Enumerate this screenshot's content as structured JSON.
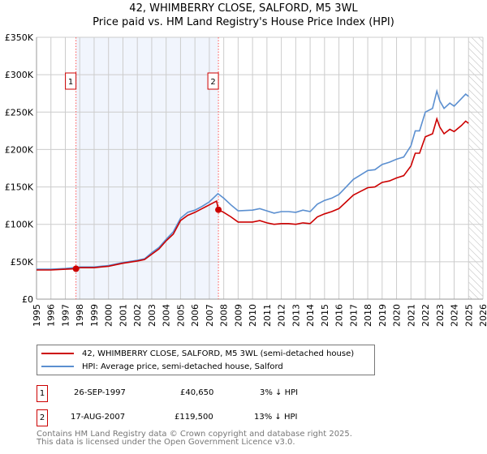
{
  "header": {
    "title": "42, WHIMBERRY CLOSE, SALFORD, M5 3WL",
    "subtitle": "Price paid vs. HM Land Registry's House Price Index (HPI)"
  },
  "chart_data": {
    "type": "line",
    "title": "42, WHIMBERRY CLOSE, SALFORD, M5 3WL",
    "subtitle": "Price paid vs. HM Land Registry's House Price Index (HPI)",
    "xlim": [
      1995,
      2026
    ],
    "ylim": [
      0,
      350000
    ],
    "x_ticks": [
      "1995",
      "1996",
      "1997",
      "1998",
      "1999",
      "2000",
      "2001",
      "2002",
      "2003",
      "2004",
      "2005",
      "2006",
      "2007",
      "2008",
      "2009",
      "2010",
      "2011",
      "2012",
      "2013",
      "2014",
      "2015",
      "2016",
      "2017",
      "2018",
      "2019",
      "2020",
      "2021",
      "2022",
      "2023",
      "2024",
      "2025",
      "2026"
    ],
    "y_ticks": [
      {
        "v": 0,
        "label": "£0"
      },
      {
        "v": 50000,
        "label": "£50K"
      },
      {
        "v": 100000,
        "label": "£100K"
      },
      {
        "v": 150000,
        "label": "£150K"
      },
      {
        "v": 200000,
        "label": "£200K"
      },
      {
        "v": 250000,
        "label": "£250K"
      },
      {
        "v": 300000,
        "label": "£300K"
      },
      {
        "v": 350000,
        "label": "£350K"
      }
    ],
    "grid": true,
    "shaded_range": [
      1997.74,
      2007.63
    ],
    "future_hatch_from": 2025.0,
    "series": [
      {
        "name": "HPI: Average price, semi-detached house, Salford",
        "color": "#5b8fd0",
        "x": [
          1995,
          1996,
          1997,
          1998,
          1999,
          2000,
          2001,
          2002,
          2002.5,
          2003,
          2003.5,
          2004,
          2004.5,
          2005,
          2005.5,
          2006,
          2006.5,
          2007,
          2007.6,
          2008,
          2008.5,
          2009,
          2010,
          2010.5,
          2011,
          2011.5,
          2012,
          2012.5,
          2013,
          2013.5,
          2014,
          2014.5,
          2015,
          2015.5,
          2016,
          2016.5,
          2017,
          2017.5,
          2018,
          2018.5,
          2019,
          2019.5,
          2020,
          2020.5,
          2021,
          2021.3,
          2021.6,
          2022,
          2022.5,
          2022.8,
          2023,
          2023.3,
          2023.7,
          2024,
          2024.5,
          2024.8,
          2025
        ],
        "y": [
          40000,
          40000,
          41000,
          43000,
          43000,
          45000,
          49000,
          52000,
          54000,
          62000,
          69000,
          80000,
          90000,
          108000,
          116000,
          119000,
          124000,
          130000,
          141000,
          135000,
          126000,
          118000,
          119000,
          121000,
          118000,
          115000,
          117000,
          117000,
          116000,
          119000,
          117000,
          127000,
          132000,
          135000,
          140000,
          150000,
          160000,
          166000,
          172000,
          173000,
          180000,
          183000,
          187000,
          190000,
          205000,
          225000,
          225000,
          250000,
          255000,
          278000,
          265000,
          255000,
          262000,
          258000,
          268000,
          274000,
          271000
        ]
      },
      {
        "name": "42, WHIMBERRY CLOSE, SALFORD, M5 3WL (semi-detached house)",
        "color": "#cc0000",
        "x": [
          1995,
          1996,
          1997,
          1997.74,
          1998,
          1999,
          2000,
          2001,
          2002,
          2002.5,
          2003,
          2003.5,
          2004,
          2004.5,
          2005,
          2005.5,
          2006,
          2006.5,
          2007,
          2007.5,
          2007.63,
          2008,
          2008.5,
          2009,
          2010,
          2010.5,
          2011,
          2011.5,
          2012,
          2012.5,
          2013,
          2013.5,
          2014,
          2014.5,
          2015,
          2015.5,
          2016,
          2016.5,
          2017,
          2017.5,
          2018,
          2018.5,
          2019,
          2019.5,
          2020,
          2020.5,
          2021,
          2021.3,
          2021.6,
          2022,
          2022.5,
          2022.8,
          2023,
          2023.3,
          2023.7,
          2024,
          2024.5,
          2024.8,
          2025
        ],
        "y": [
          39000,
          39000,
          40000,
          40650,
          42000,
          42000,
          44000,
          48000,
          51000,
          53000,
          60000,
          67000,
          78000,
          87000,
          105000,
          112000,
          116000,
          121000,
          126000,
          131000,
          119500,
          116000,
          110000,
          103000,
          103000,
          105000,
          102000,
          100000,
          101000,
          101000,
          100000,
          102000,
          101000,
          110000,
          114000,
          117000,
          121000,
          130000,
          139000,
          144000,
          149000,
          150000,
          156000,
          158000,
          162000,
          165000,
          178000,
          195000,
          195000,
          217000,
          221000,
          241000,
          230000,
          221000,
          227000,
          224000,
          232000,
          238000,
          235000
        ]
      }
    ],
    "annotations": [
      {
        "label": "1",
        "x": 1997.74,
        "y": 40650
      },
      {
        "label": "2",
        "x": 2007.63,
        "y": 119500
      }
    ]
  },
  "legend": {
    "items": [
      {
        "label": "42, WHIMBERRY CLOSE, SALFORD, M5 3WL (semi-detached house)",
        "color": "#cc0000"
      },
      {
        "label": "HPI: Average price, semi-detached house, Salford",
        "color": "#5b8fd0"
      }
    ]
  },
  "sales": [
    {
      "num": "1",
      "date": "26-SEP-1997",
      "price": "£40,650",
      "hpi": "3% ↓ HPI"
    },
    {
      "num": "2",
      "date": "17-AUG-2007",
      "price": "£119,500",
      "hpi": "13% ↓ HPI"
    }
  ],
  "footer": {
    "line1": "Contains HM Land Registry data © Crown copyright and database right 2025.",
    "line2": "This data is licensed under the Open Government Licence v3.0."
  }
}
